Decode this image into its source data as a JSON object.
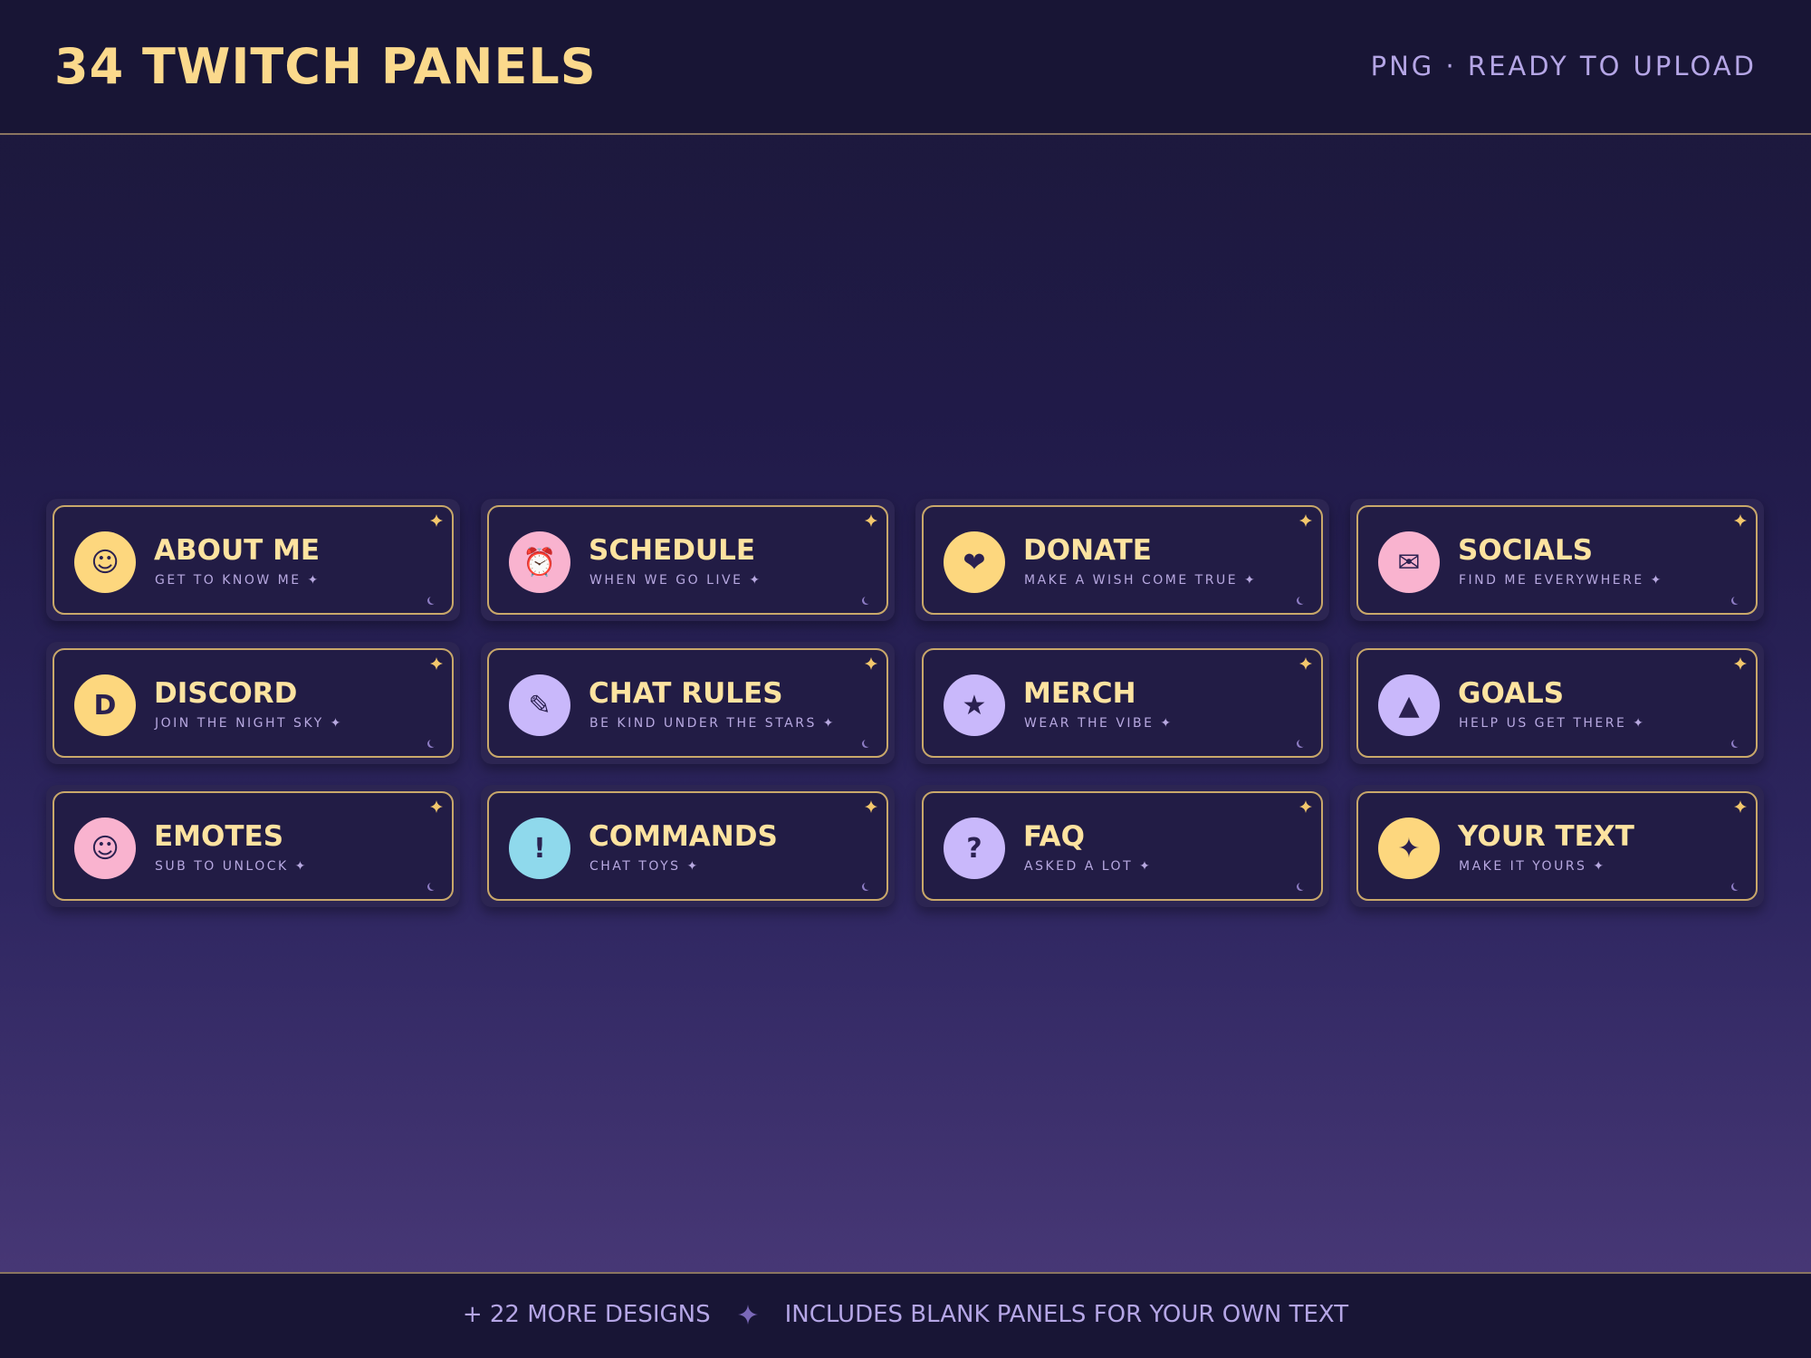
{
  "header": {
    "title": "34 TWITCH PANELS",
    "subtitle": "PNG · READY TO UPLOAD"
  },
  "panels": [
    {
      "icon": "☺",
      "icon_color": "#fdd77e",
      "title": "ABOUT ME",
      "subtitle": "GET TO KNOW ME ✦"
    },
    {
      "icon": "⏰",
      "icon_color": "#f9b3cf",
      "title": "SCHEDULE",
      "subtitle": "WHEN WE GO LIVE ✦"
    },
    {
      "icon": "❤",
      "icon_color": "#fdd77e",
      "title": "DONATE",
      "subtitle": "MAKE A WISH COME TRUE ✦"
    },
    {
      "icon": "✉",
      "icon_color": "#f9b3cf",
      "title": "SOCIALS",
      "subtitle": "FIND ME EVERYWHERE ✦"
    },
    {
      "icon": "D",
      "icon_color": "#fdd77e",
      "title": "DISCORD",
      "subtitle": "JOIN THE NIGHT SKY ✦"
    },
    {
      "icon": "✎",
      "icon_color": "#c9b8fb",
      "title": "CHAT RULES",
      "subtitle": "BE KIND UNDER THE STARS ✦"
    },
    {
      "icon": "★",
      "icon_color": "#c9b8fb",
      "title": "MERCH",
      "subtitle": "WEAR THE VIBE ✦"
    },
    {
      "icon": "▲",
      "icon_color": "#c9b8fb",
      "title": "GOALS",
      "subtitle": "HELP US GET THERE ✦"
    },
    {
      "icon": "☺",
      "icon_color": "#f9b3cf",
      "title": "EMOTES",
      "subtitle": "SUB TO UNLOCK ✦"
    },
    {
      "icon": "!",
      "icon_color": "#8fd9ec",
      "title": "COMMANDS",
      "subtitle": "CHAT TOYS ✦"
    },
    {
      "icon": "?",
      "icon_color": "#c9b8fb",
      "title": "FAQ",
      "subtitle": "ASKED A LOT ✦"
    },
    {
      "icon": "✦",
      "icon_color": "#fdd77e",
      "title": "YOUR TEXT",
      "subtitle": "MAKE IT YOURS ✦"
    }
  ],
  "footer": {
    "left": "+ 22 MORE DESIGNS",
    "right": "INCLUDES BLANK PANELS FOR YOUR OWN TEXT"
  }
}
